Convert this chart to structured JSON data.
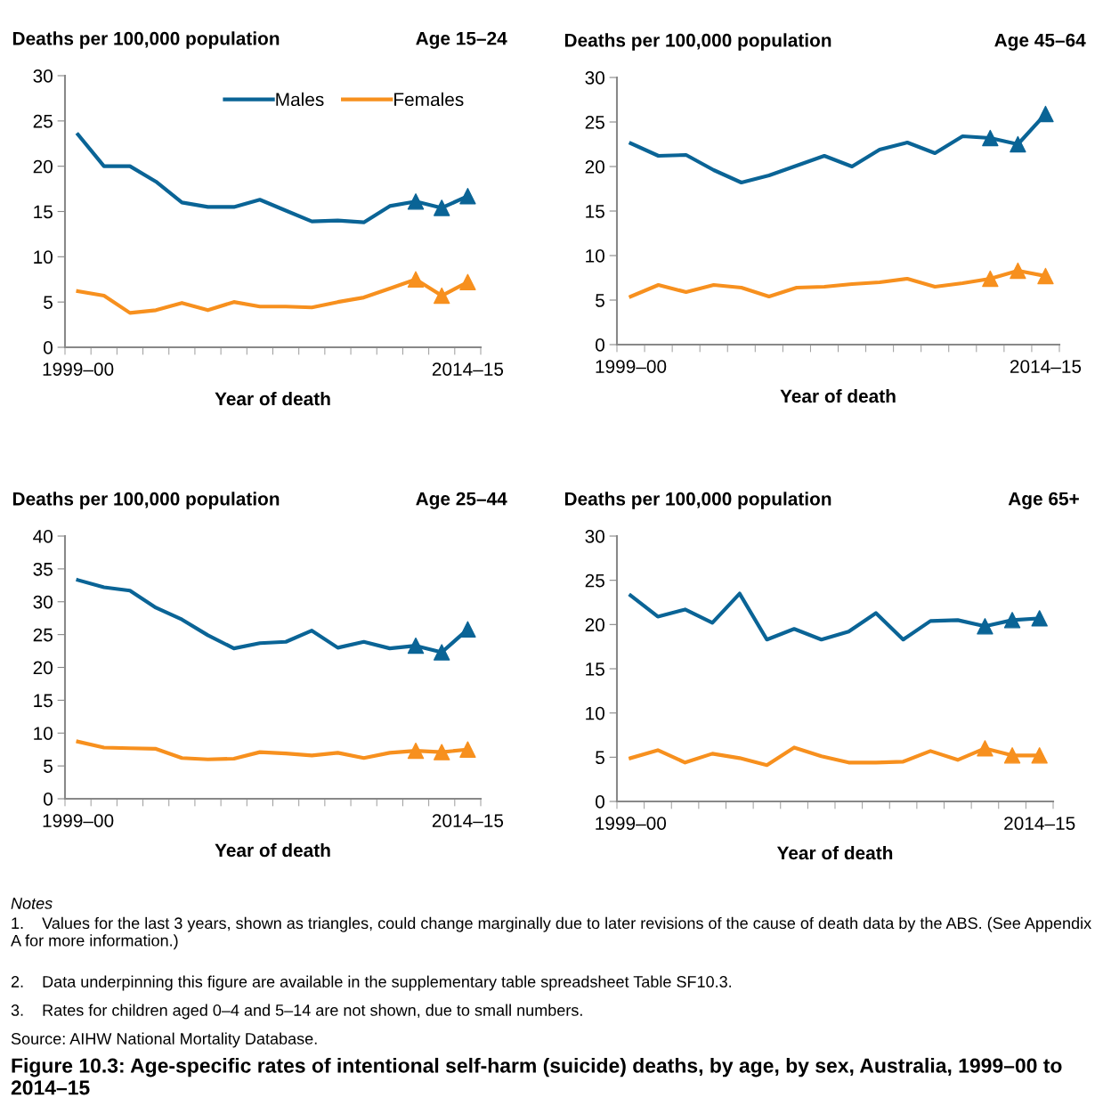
{
  "chart_data": [
    {
      "type": "line",
      "title": "Age 15–24",
      "ylabel": "Deaths per 100,000 population",
      "xlabel": "Year of death",
      "categories": [
        "1999–00",
        null,
        null,
        null,
        null,
        null,
        null,
        null,
        null,
        null,
        null,
        null,
        null,
        null,
        null,
        "2014–15"
      ],
      "ylim": [
        0,
        30
      ],
      "yticks": [
        0,
        5,
        10,
        15,
        20,
        25,
        30
      ],
      "grid": false,
      "legend": "top right",
      "series": [
        {
          "name": "Males",
          "color": "#0a6496",
          "values": [
            23.5,
            20.0,
            20.0,
            18.3,
            16.0,
            15.5,
            15.5,
            16.3,
            15.1,
            13.9,
            14.0,
            13.8,
            15.6,
            16.1,
            15.4,
            16.7
          ]
        },
        {
          "name": "Females",
          "color": "#f7901e",
          "values": [
            6.2,
            5.7,
            3.8,
            4.1,
            4.9,
            4.1,
            5.0,
            4.5,
            4.5,
            4.4,
            5.0,
            5.5,
            6.5,
            7.5,
            5.7,
            7.2
          ]
        },
        {
          "type": "scatter",
          "marker": "triangle",
          "color": "#0a6496",
          "values": [
            null,
            null,
            null,
            null,
            null,
            null,
            null,
            null,
            null,
            null,
            null,
            null,
            null,
            16.1,
            15.4,
            16.7
          ]
        },
        {
          "type": "scatter",
          "marker": "triangle",
          "color": "#f7901e",
          "values": [
            null,
            null,
            null,
            null,
            null,
            null,
            null,
            null,
            null,
            null,
            null,
            null,
            null,
            7.5,
            5.7,
            7.2
          ]
        }
      ]
    },
    {
      "type": "line",
      "title": "Age 45–64",
      "ylabel": "Deaths per 100,000 population",
      "xlabel": "Year of death",
      "categories": [
        "1999–00",
        null,
        null,
        null,
        null,
        null,
        null,
        null,
        null,
        null,
        null,
        null,
        null,
        null,
        null,
        "2014–15"
      ],
      "ylim": [
        0,
        30
      ],
      "yticks": [
        0,
        5,
        10,
        15,
        20,
        25,
        30
      ],
      "grid": false,
      "series": [
        {
          "color": "#0a6496",
          "values": [
            22.6,
            21.2,
            21.3,
            19.6,
            18.2,
            19.0,
            20.1,
            21.2,
            20.0,
            21.9,
            22.7,
            21.5,
            23.4,
            23.2,
            22.5,
            25.9
          ]
        },
        {
          "color": "#f7901e",
          "values": [
            5.4,
            6.7,
            5.9,
            6.7,
            6.4,
            5.4,
            6.4,
            6.5,
            6.8,
            7.0,
            7.4,
            6.5,
            6.9,
            7.4,
            8.3,
            7.7
          ]
        },
        {
          "type": "scatter",
          "marker": "triangle",
          "color": "#0a6496",
          "values": [
            null,
            null,
            null,
            null,
            null,
            null,
            null,
            null,
            null,
            null,
            null,
            null,
            null,
            23.2,
            22.5,
            25.9
          ]
        },
        {
          "type": "scatter",
          "marker": "triangle",
          "color": "#f7901e",
          "values": [
            null,
            null,
            null,
            null,
            null,
            null,
            null,
            null,
            null,
            null,
            null,
            null,
            null,
            7.4,
            8.3,
            7.7
          ]
        }
      ]
    },
    {
      "type": "line",
      "title": "Age 25–44",
      "ylabel": "Deaths per 100,000 population",
      "xlabel": "Year of death",
      "categories": [
        "1999–00",
        null,
        null,
        null,
        null,
        null,
        null,
        null,
        null,
        null,
        null,
        null,
        null,
        null,
        null,
        "2014–15"
      ],
      "ylim": [
        0,
        40
      ],
      "yticks": [
        0,
        5,
        10,
        15,
        20,
        25,
        30,
        35,
        40
      ],
      "grid": false,
      "series": [
        {
          "color": "#0a6496",
          "values": [
            33.3,
            32.2,
            31.7,
            29.1,
            27.3,
            24.9,
            22.9,
            23.7,
            23.9,
            25.6,
            23.0,
            23.9,
            22.9,
            23.3,
            22.3,
            25.8
          ]
        },
        {
          "color": "#f7901e",
          "values": [
            8.7,
            7.8,
            7.7,
            7.6,
            6.2,
            6.0,
            6.1,
            7.1,
            6.9,
            6.6,
            7.0,
            6.2,
            7.0,
            7.3,
            7.1,
            7.5
          ]
        },
        {
          "type": "scatter",
          "marker": "triangle",
          "color": "#0a6496",
          "values": [
            null,
            null,
            null,
            null,
            null,
            null,
            null,
            null,
            null,
            null,
            null,
            null,
            null,
            23.3,
            22.3,
            25.8
          ]
        },
        {
          "type": "scatter",
          "marker": "triangle",
          "color": "#f7901e",
          "values": [
            null,
            null,
            null,
            null,
            null,
            null,
            null,
            null,
            null,
            null,
            null,
            null,
            null,
            7.3,
            7.1,
            7.5
          ]
        }
      ]
    },
    {
      "type": "line",
      "title": "Age 65+",
      "ylabel": "Deaths per 100,000 population",
      "xlabel": "Year of death",
      "categories": [
        "1999–00",
        null,
        null,
        null,
        null,
        null,
        null,
        null,
        null,
        null,
        null,
        null,
        null,
        null,
        null,
        "2014–15"
      ],
      "ylim": [
        0,
        30
      ],
      "yticks": [
        0,
        5,
        10,
        15,
        20,
        25,
        30
      ],
      "grid": false,
      "series": [
        {
          "color": "#0a6496",
          "values": [
            23.3,
            20.9,
            21.7,
            20.2,
            23.5,
            18.3,
            19.5,
            18.3,
            19.2,
            21.3,
            18.3,
            20.4,
            20.5,
            19.8,
            20.5,
            20.7
          ]
        },
        {
          "color": "#f7901e",
          "values": [
            4.9,
            5.8,
            4.4,
            5.4,
            4.9,
            4.1,
            6.1,
            5.1,
            4.4,
            4.4,
            4.5,
            5.7,
            4.7,
            6.0,
            5.2,
            5.2
          ]
        },
        {
          "type": "scatter",
          "marker": "triangle",
          "color": "#0a6496",
          "values": [
            null,
            null,
            null,
            null,
            null,
            null,
            null,
            null,
            null,
            null,
            null,
            null,
            null,
            19.8,
            20.5,
            20.7
          ]
        },
        {
          "type": "scatter",
          "marker": "triangle",
          "color": "#f7901e",
          "values": [
            null,
            null,
            null,
            null,
            null,
            null,
            null,
            null,
            null,
            null,
            null,
            null,
            null,
            6.0,
            5.2,
            5.2
          ]
        }
      ],
      "annotations": [
        "Notes",
        "1.    Values for the last 3 years, shown as triangles, could change marginally due to later revisions of the cause of death data by the ABS. (See Appendix A for more information.)",
        "2.    Data underpinning this figure are available in the supplementary table spreadsheet Table SF10.3.",
        "3.    Rates for children aged 0–4 and 5–14 are not shown, due to small numbers.",
        "Source: AIHW National Mortality Database.",
        "Figure 10.3: Age-specific rates of intentional self-harm (suicide) deaths, by age, by sex, Australia, 1999–00 to 2014–15"
      ]
    }
  ]
}
